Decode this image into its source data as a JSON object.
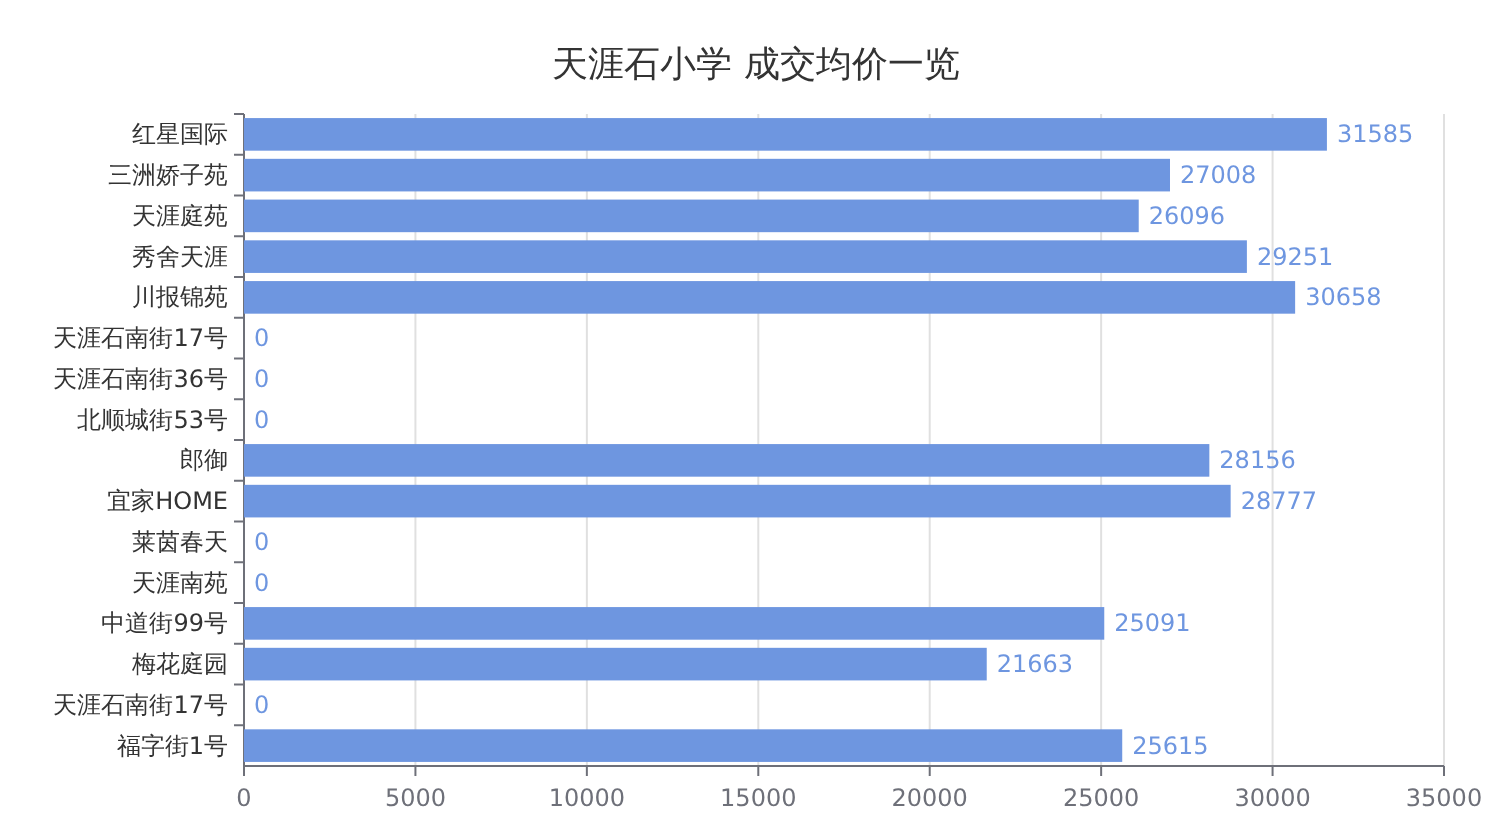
{
  "chart_data": {
    "type": "bar",
    "orientation": "horizontal",
    "title": "天涯石小学 成交均价一览",
    "categories": [
      "红星国际",
      "三洲娇子苑",
      "天涯庭苑",
      "秀舍天涯",
      "川报锦苑",
      "天涯石南街17号",
      "天涯石南街36号",
      "北顺城街53号",
      "郎御",
      "宜家HOME",
      "莱茵春天",
      "天涯南苑",
      "中道街99号",
      "梅花庭园",
      "天涯石南街17号",
      "福字街1号"
    ],
    "values": [
      31585,
      27008,
      26096,
      29251,
      30658,
      0,
      0,
      0,
      28156,
      28777,
      0,
      0,
      25091,
      21663,
      0,
      25615
    ],
    "color": "#6e96e0",
    "xlim": [
      0,
      35000
    ],
    "xticks": [
      0,
      5000,
      10000,
      15000,
      20000,
      25000,
      30000,
      35000
    ],
    "grid": "x",
    "data_labels": true
  }
}
